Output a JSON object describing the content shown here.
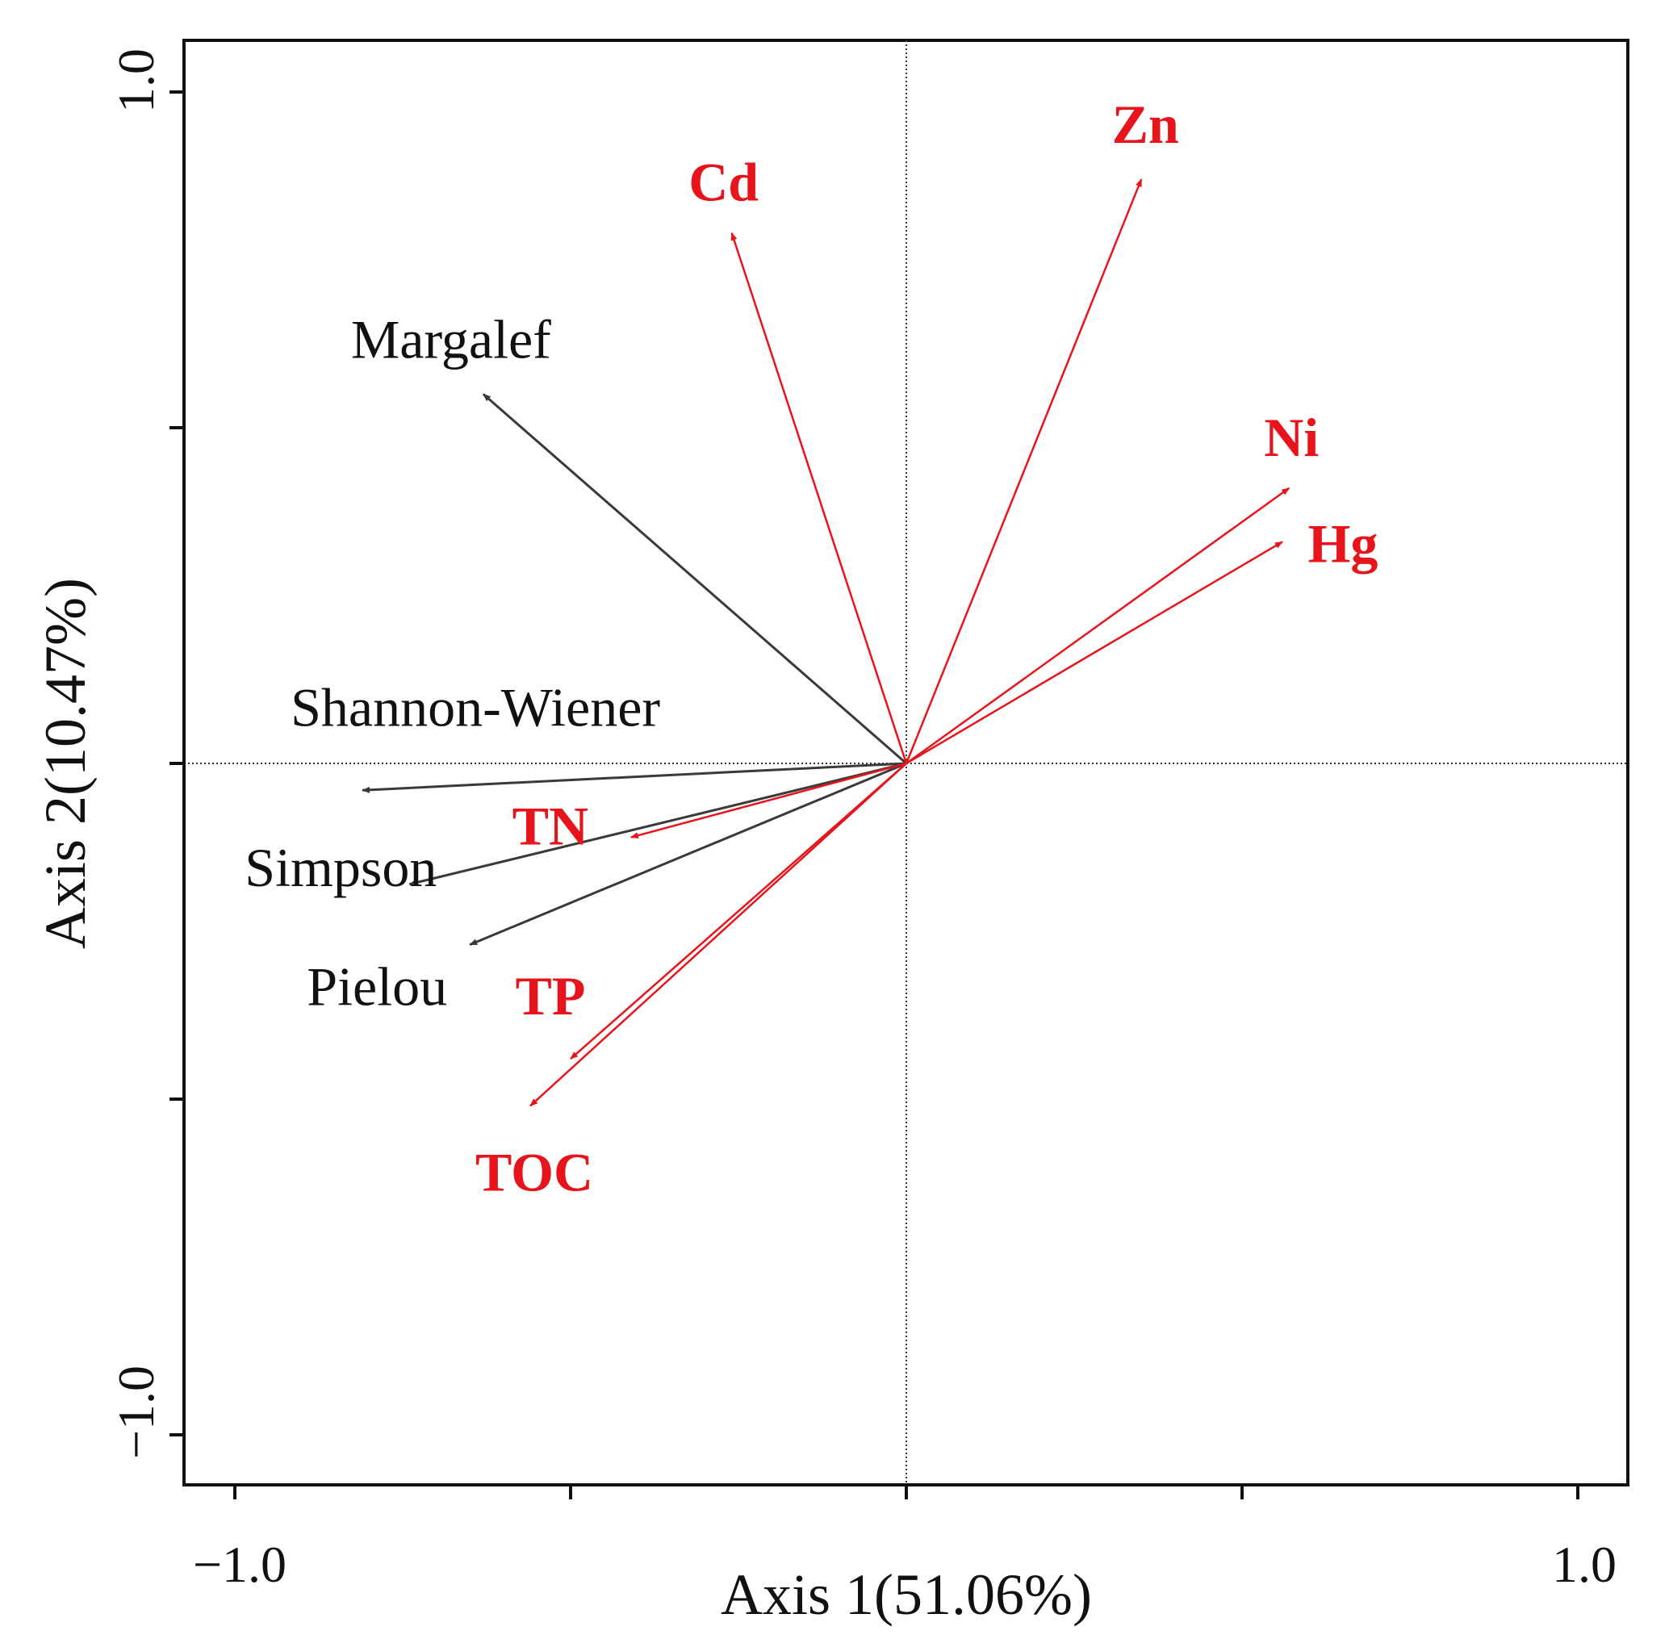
{
  "chart_data": {
    "type": "scatter",
    "subtype": "rda-biplot",
    "xlabel": "Axis 1(51.06%)",
    "ylabel": "Axis 2(10.47%)",
    "xlim": [
      -1.06,
      1.06
    ],
    "ylim": [
      -1.06,
      1.06
    ],
    "x_tick_labels": [
      {
        "value": -1.0,
        "label": "−1.0"
      },
      {
        "value": 1.0,
        "label": "1.0"
      }
    ],
    "y_tick_labels": [
      {
        "value": 1.0,
        "label": "1.0"
      },
      {
        "value": -1.0,
        "label": "−1.0"
      }
    ],
    "x_ticks": [
      -1.0,
      -0.5,
      0.0,
      0.5,
      1.0
    ],
    "y_ticks": [
      1.0,
      0.5,
      0.0,
      -0.5,
      -1.0
    ],
    "reference_lines": {
      "x": 0,
      "y": 0
    },
    "colors": {
      "species": "#3a3a3a",
      "environment": "#e8141c",
      "axes": "#111111"
    },
    "series": [
      {
        "name": "species",
        "vectors": [
          {
            "label": "Margalef",
            "x": -0.63,
            "y": 0.55
          },
          {
            "label": "Shannon-Wiener",
            "x": -0.81,
            "y": -0.04
          },
          {
            "label": "Simpson",
            "x": -0.74,
            "y": -0.18
          },
          {
            "label": "Pielou",
            "x": -0.65,
            "y": -0.27
          }
        ]
      },
      {
        "name": "environment",
        "vectors": [
          {
            "label": "Cd",
            "x": -0.26,
            "y": 0.79
          },
          {
            "label": "Zn",
            "x": 0.35,
            "y": 0.87
          },
          {
            "label": "Ni",
            "x": 0.57,
            "y": 0.41
          },
          {
            "label": "Hg",
            "x": 0.56,
            "y": 0.33
          },
          {
            "label": "TN",
            "x": -0.41,
            "y": -0.11
          },
          {
            "label": "TP",
            "x": -0.5,
            "y": -0.44
          },
          {
            "label": "TOC",
            "x": -0.56,
            "y": -0.51
          }
        ]
      }
    ]
  }
}
